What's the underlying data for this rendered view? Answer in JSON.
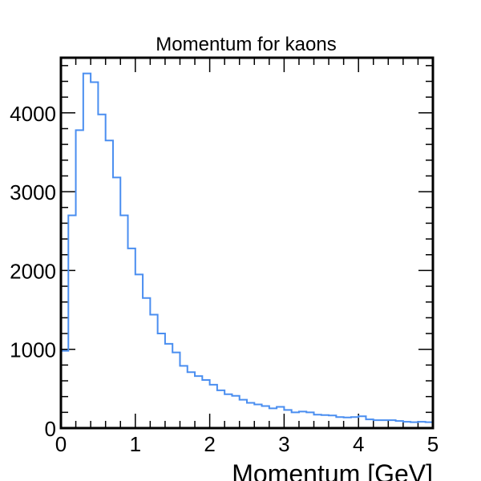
{
  "chart_data": {
    "type": "histogram",
    "title": "Momentum for kaons",
    "xlabel": "Momentum [GeV]",
    "ylabel": "",
    "xlim": [
      0,
      5
    ],
    "ylim": [
      0,
      4700
    ],
    "bin_width": 0.1,
    "bin_edges_start": 0,
    "series": [
      {
        "color": "#4a8ef0",
        "values": [
          980,
          2700,
          3780,
          4500,
          4390,
          3980,
          3650,
          3180,
          2700,
          2280,
          1950,
          1650,
          1440,
          1200,
          1070,
          960,
          790,
          710,
          660,
          610,
          550,
          480,
          430,
          410,
          360,
          320,
          300,
          280,
          250,
          270,
          230,
          200,
          210,
          200,
          170,
          165,
          160,
          140,
          135,
          140,
          150,
          110,
          100,
          100,
          100,
          90,
          80,
          75,
          80,
          75
        ]
      }
    ],
    "xticks": [
      "0",
      "1",
      "2",
      "3",
      "4",
      "5"
    ],
    "yticks": [
      "0",
      "1000",
      "2000",
      "3000",
      "4000"
    ],
    "grid": false,
    "legend": "none"
  }
}
